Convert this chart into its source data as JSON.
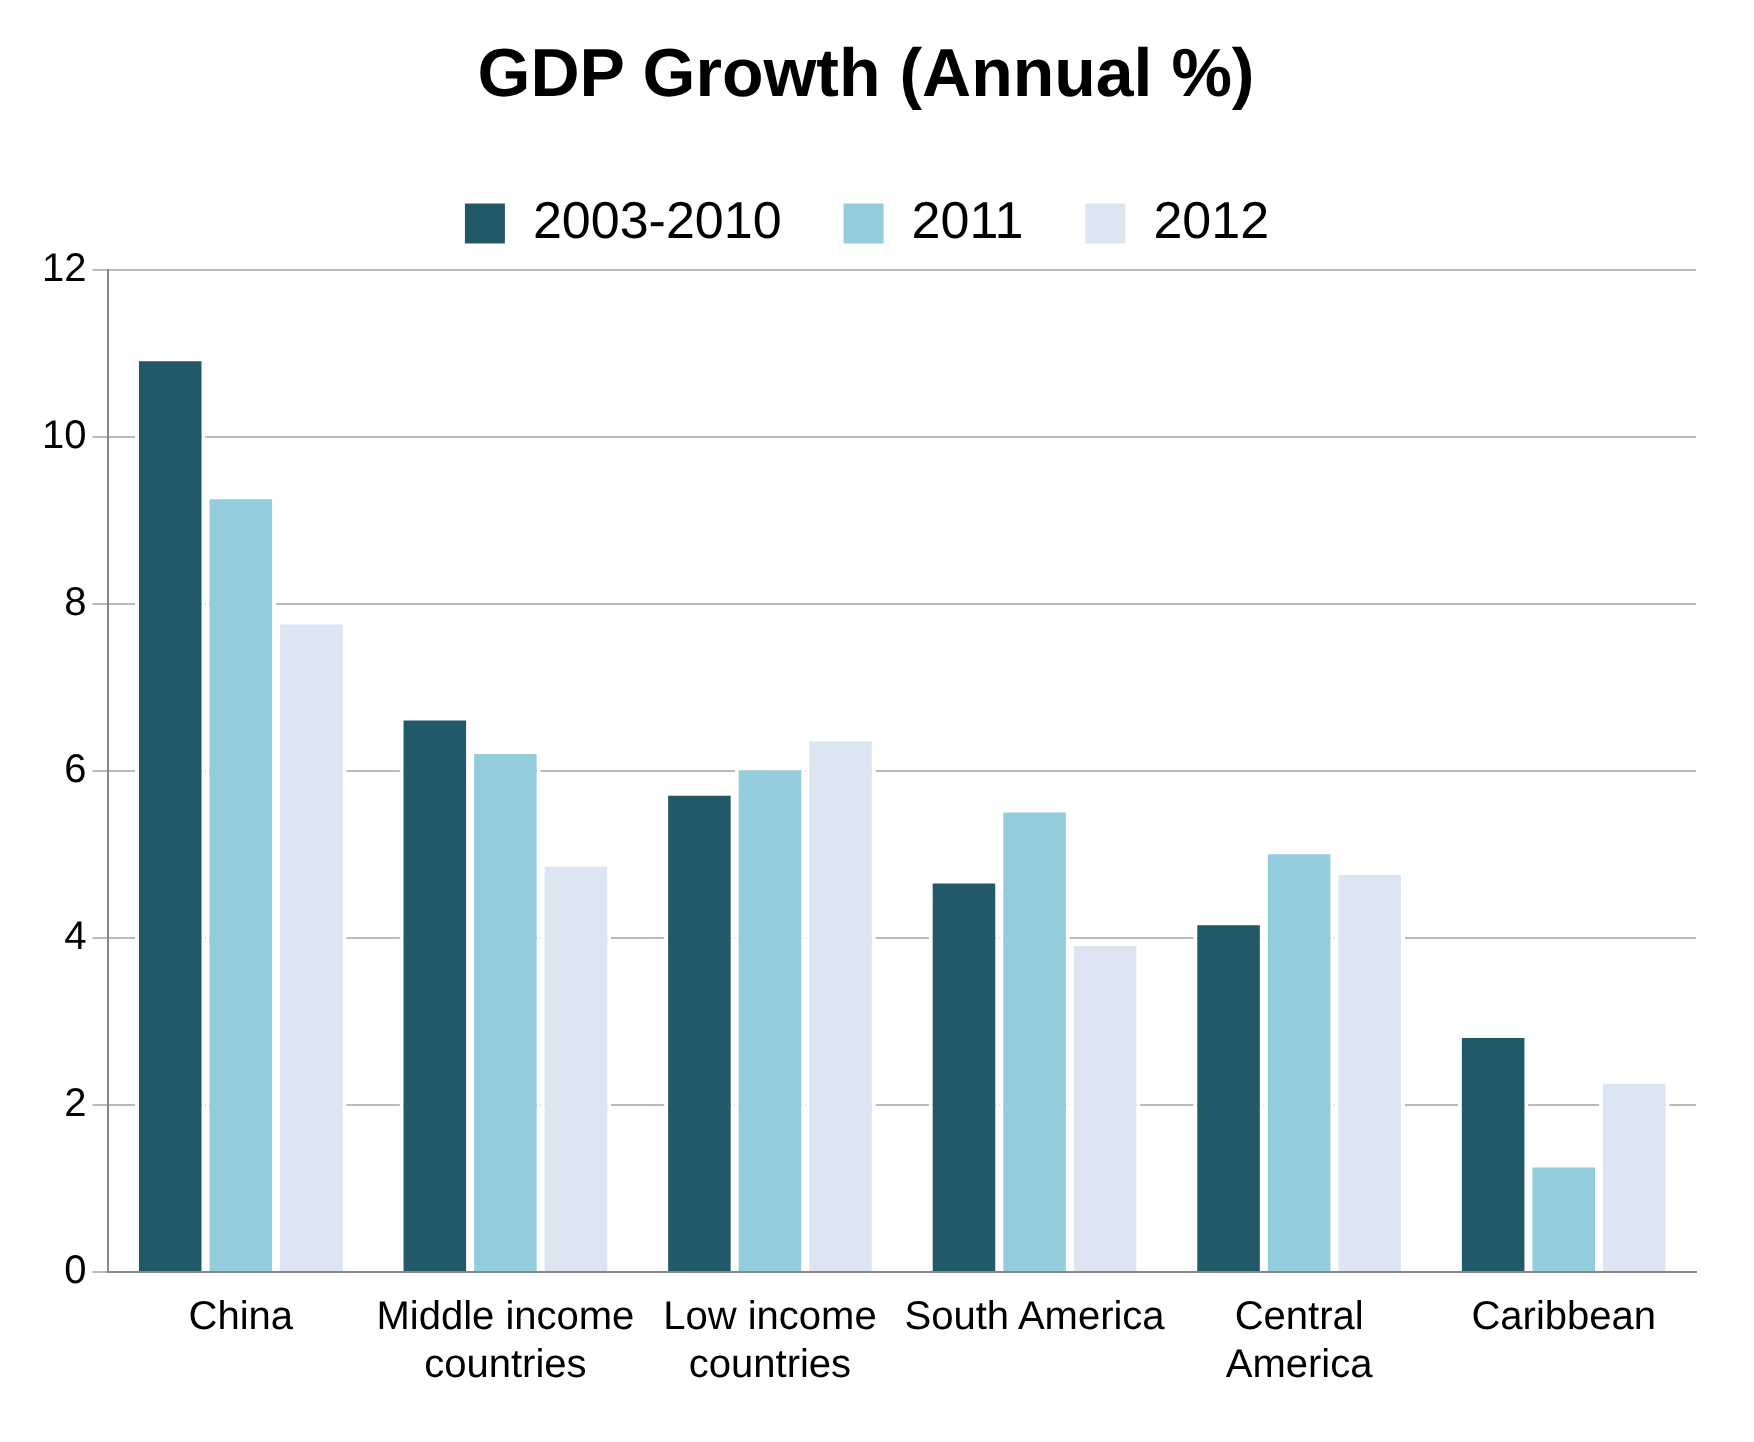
{
  "chart_data": {
    "type": "bar",
    "title": "GDP Growth (Annual %)",
    "categories": [
      "China",
      "Middle income countries",
      "Low income countries",
      "South America",
      "Central America",
      "Caribbean"
    ],
    "series": [
      {
        "name": "2003-2010",
        "color": "#215968",
        "values": [
          10.95,
          6.65,
          5.75,
          4.7,
          4.2,
          2.85
        ]
      },
      {
        "name": "2011",
        "color": "#93cddd",
        "values": [
          9.3,
          6.25,
          6.05,
          5.55,
          5.05,
          1.3
        ]
      },
      {
        "name": "2012",
        "color": "#dce6f2",
        "values": [
          7.8,
          4.9,
          6.4,
          3.95,
          4.8,
          2.3
        ]
      }
    ],
    "ylim": [
      0,
      12
    ],
    "yticks": [
      0,
      2,
      4,
      6,
      8,
      10,
      12
    ],
    "grid": "y",
    "legend": "top"
  }
}
